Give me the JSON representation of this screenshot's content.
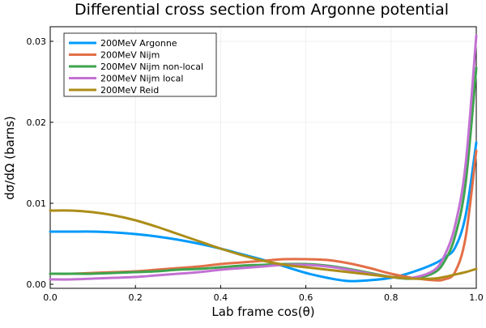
{
  "chart_data": {
    "type": "line",
    "title": "Differential cross section from Argonne potential",
    "xlabel": "Lab frame cos(θ)",
    "ylabel": "dσ/dΩ (barns)",
    "xlim": [
      0.0,
      1.0
    ],
    "ylim": [
      -0.0005,
      0.0318
    ],
    "xticks": [
      0.0,
      0.2,
      0.4,
      0.6,
      0.8,
      1.0
    ],
    "xtick_labels": [
      "0.0",
      "0.2",
      "0.4",
      "0.6",
      "0.8",
      "1.0"
    ],
    "yticks": [
      0.0,
      0.01,
      0.02,
      0.03
    ],
    "ytick_labels": [
      "0.00",
      "0.01",
      "0.02",
      "0.03"
    ],
    "grid": true,
    "legend_position": "top-left",
    "x": [
      0.0,
      0.05,
      0.1,
      0.15,
      0.2,
      0.25,
      0.3,
      0.35,
      0.4,
      0.45,
      0.5,
      0.55,
      0.6,
      0.65,
      0.7,
      0.75,
      0.8,
      0.85,
      0.9,
      0.925,
      0.95,
      0.975,
      1.0
    ],
    "series": [
      {
        "name": "200MeV Argonne",
        "color": "#009AFA",
        "values": [
          0.0065,
          0.0065,
          0.0065,
          0.0064,
          0.0062,
          0.0059,
          0.0055,
          0.005,
          0.0044,
          0.0037,
          0.003,
          0.0022,
          0.0014,
          0.0008,
          0.0004,
          0.0005,
          0.0008,
          0.0015,
          0.0025,
          0.0033,
          0.0045,
          0.0085,
          0.0175
        ]
      },
      {
        "name": "200MeV Nijm",
        "color": "#E36F47",
        "values": [
          0.0013,
          0.0013,
          0.0014,
          0.0015,
          0.0016,
          0.0018,
          0.002,
          0.0022,
          0.0025,
          0.0027,
          0.0029,
          0.0031,
          0.0031,
          0.003,
          0.0026,
          0.002,
          0.0013,
          0.0008,
          0.0005,
          0.0006,
          0.0015,
          0.0058,
          0.0165
        ]
      },
      {
        "name": "200MeV Nijm non-local",
        "color": "#3EA44E",
        "values": [
          0.0013,
          0.0013,
          0.0013,
          0.0014,
          0.0015,
          0.0016,
          0.0018,
          0.0019,
          0.0021,
          0.0023,
          0.0024,
          0.0025,
          0.0025,
          0.0023,
          0.0019,
          0.0014,
          0.0009,
          0.0007,
          0.0014,
          0.0028,
          0.0059,
          0.0125,
          0.0267
        ]
      },
      {
        "name": "200MeV Nijm local",
        "color": "#C271D2",
        "values": [
          0.0006,
          0.0006,
          0.0007,
          0.0008,
          0.0009,
          0.0011,
          0.0013,
          0.0015,
          0.0018,
          0.002,
          0.0022,
          0.0024,
          0.0024,
          0.0022,
          0.0018,
          0.0013,
          0.0009,
          0.0008,
          0.0017,
          0.0035,
          0.0072,
          0.0148,
          0.0307
        ]
      },
      {
        "name": "200MeV Reid",
        "color": "#AC8D18",
        "values": [
          0.0091,
          0.0091,
          0.0089,
          0.0085,
          0.0079,
          0.0071,
          0.0062,
          0.0053,
          0.0044,
          0.0036,
          0.0029,
          0.0024,
          0.0021,
          0.0018,
          0.0015,
          0.0012,
          0.0009,
          0.0007,
          0.0007,
          0.0009,
          0.0012,
          0.0015,
          0.0019
        ]
      }
    ]
  }
}
